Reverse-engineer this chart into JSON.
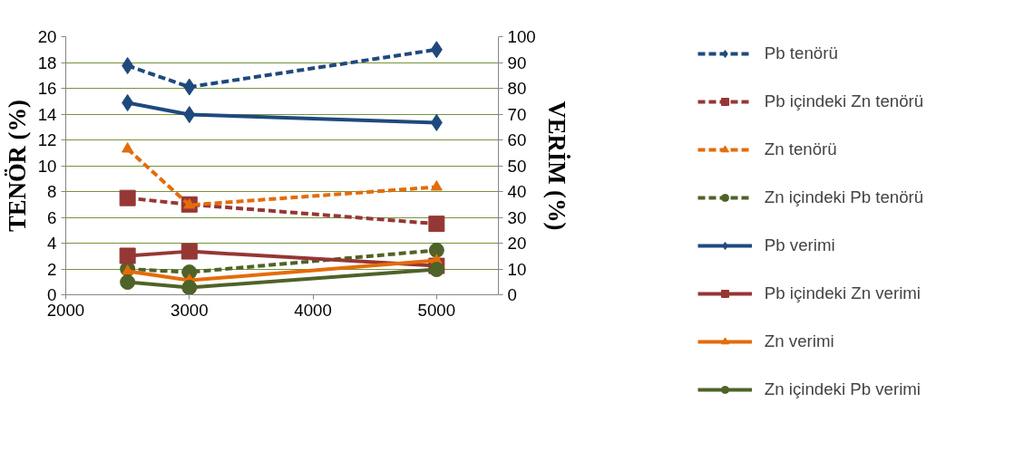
{
  "chart_data": {
    "type": "line",
    "ylabel": "TENÖR (%)",
    "y2label": "VERİM (%)",
    "x": [
      2500,
      3000,
      5000
    ],
    "xlim": [
      2000,
      5500
    ],
    "xticks": [
      2000,
      3000,
      4000,
      5000
    ],
    "ylim": [
      0,
      20
    ],
    "yticks": [
      0,
      2,
      4,
      6,
      8,
      10,
      12,
      14,
      16,
      18,
      20
    ],
    "y2lim": [
      0,
      100
    ],
    "y2ticks": [
      0,
      10,
      20,
      30,
      40,
      50,
      60,
      70,
      80,
      90,
      100
    ],
    "grid": "y",
    "legend": "right",
    "series": [
      {
        "name": "Pb tenörü",
        "color": "#1f497d",
        "values": [
          17.75,
          16.1,
          19.0
        ],
        "marker": "diamond",
        "line_style": "dashed"
      },
      {
        "name": "Pb içindeki Zn tenörü",
        "color": "#953735",
        "values": [
          7.5,
          7.0,
          5.5
        ],
        "marker": "square",
        "line_style": "dashed"
      },
      {
        "name": "Zn tenörü",
        "color": "#e46c0a",
        "values": [
          11.3,
          6.95,
          8.35
        ],
        "marker": "triangle",
        "line_style": "dashed"
      },
      {
        "name": "Zn içindeki Pb tenörü",
        "color": "#4f6228",
        "values": [
          2.0,
          1.75,
          3.45
        ],
        "marker": "circle",
        "line_style": "dashed"
      },
      {
        "name": "Pb verimi",
        "color": "#1f497d",
        "values": [
          74.4,
          69.8,
          66.7
        ],
        "marker": "diamond",
        "line_style": "solid",
        "axis": "y2"
      },
      {
        "name": "Pb içindeki Zn verimi",
        "color": "#953735",
        "values": [
          15.1,
          16.8,
          11.2
        ],
        "marker": "square",
        "line_style": "solid",
        "axis": "y2"
      },
      {
        "name": "Zn verimi",
        "color": "#e46c0a",
        "values": [
          9.1,
          5.6,
          13.3
        ],
        "marker": "triangle",
        "line_style": "solid",
        "axis": "y2"
      },
      {
        "name": "Zn içindeki Pb verimi",
        "color": "#4f6228",
        "values": [
          4.9,
          2.8,
          9.8
        ],
        "marker": "circle",
        "line_style": "solid",
        "axis": "y2"
      }
    ]
  }
}
